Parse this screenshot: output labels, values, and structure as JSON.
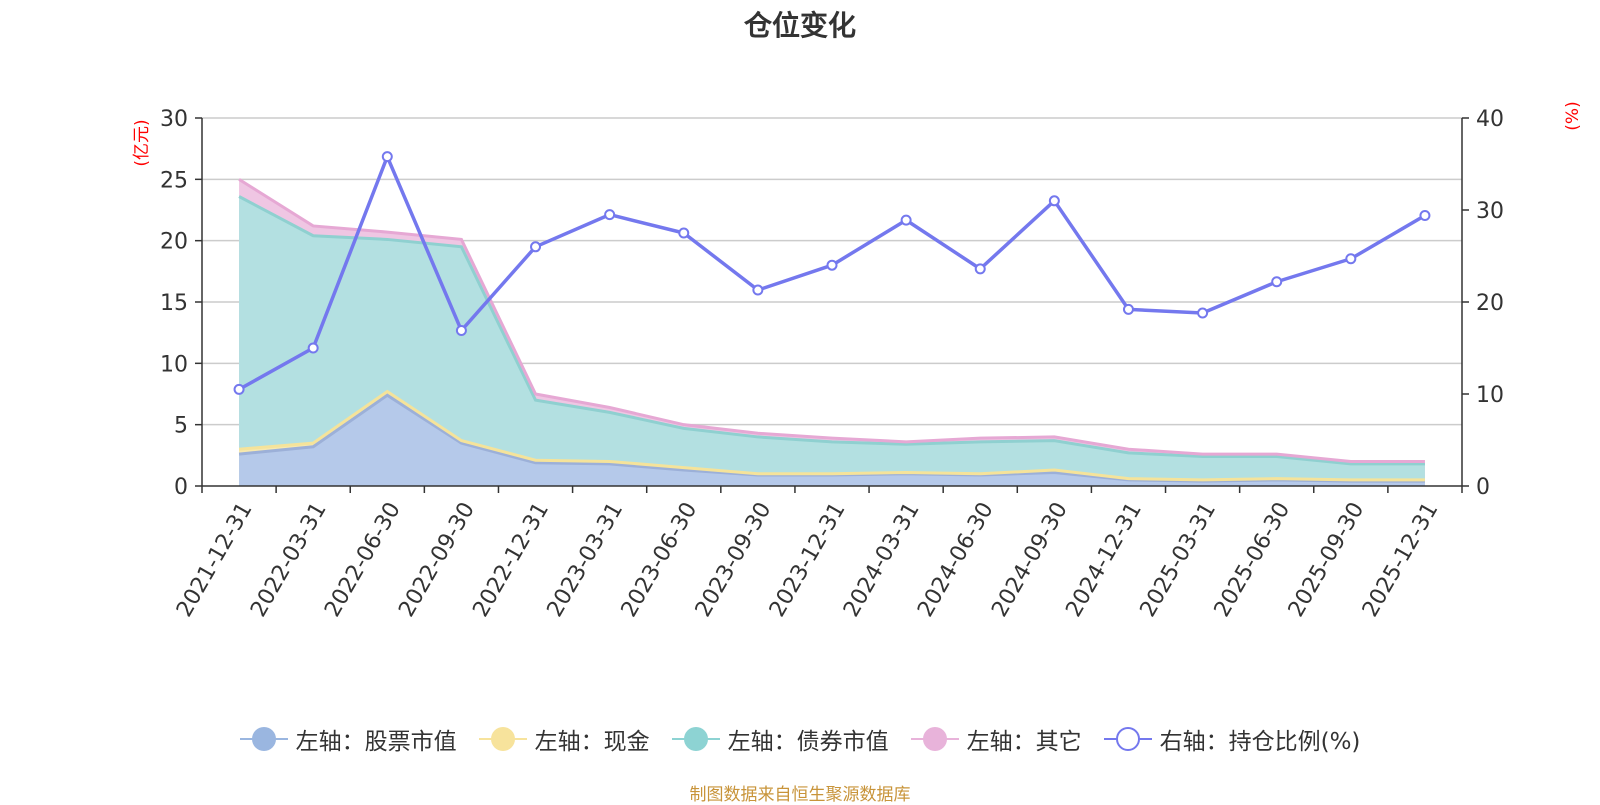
{
  "title": "仓位变化",
  "source_note": "制图数据来自恒生聚源数据库",
  "colors": {
    "stock": "#8fb0e0",
    "cash": "#f5e39a",
    "bond": "#88d0d0",
    "other": "#e8b4d8",
    "ratio": "#7478ee",
    "axis_unit": "#ff0000",
    "grid": "#cccccc",
    "text": "#333333"
  },
  "legend": [
    {
      "key": "stock",
      "label": "左轴：股票市值",
      "color": "#9ab6e0",
      "hollow": false
    },
    {
      "key": "cash",
      "label": "左轴：现金",
      "color": "#f7e39c",
      "hollow": false
    },
    {
      "key": "bond",
      "label": "左轴：债券市值",
      "color": "#8dd3d3",
      "hollow": false
    },
    {
      "key": "other",
      "label": "左轴：其它",
      "color": "#e8b3da",
      "hollow": false
    },
    {
      "key": "ratio",
      "label": "右轴：持仓比例(%)",
      "color": "#7478ee",
      "hollow": true
    }
  ],
  "chart_data": {
    "type": "area",
    "title": "仓位变化",
    "categories": [
      "2021-12-31",
      "2022-03-31",
      "2022-06-30",
      "2022-09-30",
      "2022-12-31",
      "2023-03-31",
      "2023-06-30",
      "2023-09-30",
      "2023-12-31",
      "2024-03-31",
      "2024-06-30",
      "2024-09-30",
      "2024-12-31",
      "2025-03-31",
      "2025-06-30",
      "2025-09-30",
      "2025-12-31"
    ],
    "left_axis": {
      "unit": "(亿元)",
      "min": 0,
      "max": 30,
      "ticks": [
        0,
        5,
        10,
        15,
        20,
        25,
        30
      ]
    },
    "right_axis": {
      "unit": "(%)",
      "min": 0,
      "max": 40,
      "ticks": [
        0,
        10,
        20,
        30,
        40
      ]
    },
    "stacked_series": [
      {
        "name": "左轴：股票市值",
        "key": "stock",
        "axis": "left",
        "values": [
          2.6,
          3.2,
          7.4,
          3.5,
          1.9,
          1.8,
          1.3,
          0.9,
          0.9,
          1.0,
          0.9,
          1.1,
          0.5,
          0.4,
          0.5,
          0.4,
          0.4
        ]
      },
      {
        "name": "左轴：现金",
        "key": "cash",
        "axis": "left",
        "values": [
          0.4,
          0.3,
          0.3,
          0.2,
          0.2,
          0.2,
          0.2,
          0.1,
          0.1,
          0.1,
          0.1,
          0.2,
          0.1,
          0.1,
          0.1,
          0.1,
          0.1
        ]
      },
      {
        "name": "左轴：债券市值",
        "key": "bond",
        "axis": "left",
        "values": [
          20.6,
          16.9,
          12.4,
          15.8,
          4.9,
          4.0,
          3.2,
          3.0,
          2.6,
          2.3,
          2.6,
          2.4,
          2.1,
          1.9,
          1.8,
          1.3,
          1.3
        ]
      },
      {
        "name": "左轴：其它",
        "key": "other",
        "axis": "left",
        "values": [
          1.4,
          0.8,
          0.6,
          0.6,
          0.5,
          0.4,
          0.3,
          0.3,
          0.3,
          0.2,
          0.3,
          0.3,
          0.3,
          0.2,
          0.2,
          0.2,
          0.2
        ]
      }
    ],
    "line_series": {
      "name": "右轴：持仓比例(%)",
      "key": "ratio",
      "axis": "right",
      "values": [
        10.5,
        15.0,
        35.8,
        16.9,
        26.0,
        29.5,
        27.5,
        21.3,
        24.0,
        28.9,
        23.6,
        31.0,
        19.2,
        18.8,
        22.2,
        24.7,
        29.4
      ]
    },
    "xlabel": "",
    "ylabel_left": "(亿元)",
    "ylabel_right": "(%)",
    "grid": true,
    "legend_position": "bottom"
  }
}
